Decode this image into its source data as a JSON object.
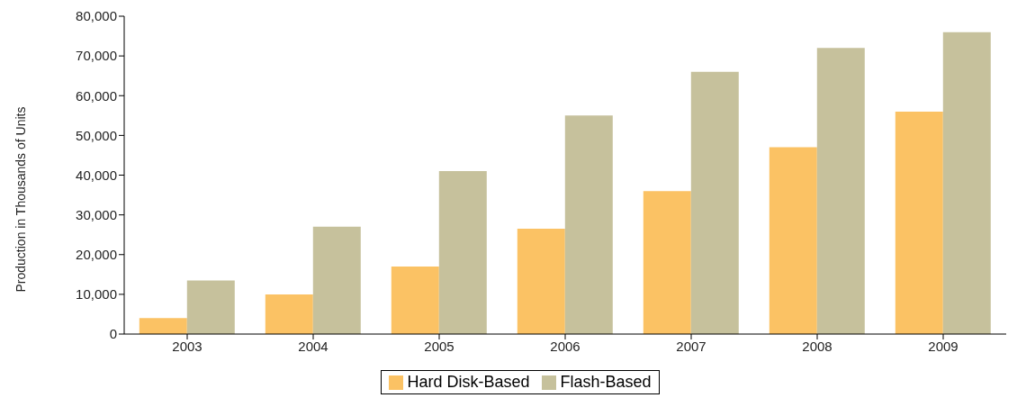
{
  "chart_data": {
    "type": "bar",
    "ylabel": "Production in Thousands of Units",
    "categories": [
      "2003",
      "2004",
      "2005",
      "2006",
      "2007",
      "2008",
      "2009"
    ],
    "series": [
      {
        "name": "Hard Disk-Based",
        "color": "#fbc264",
        "values": [
          4000,
          10000,
          17000,
          26500,
          36000,
          47000,
          56000
        ]
      },
      {
        "name": "Flash-Based",
        "color": "#c6c19c",
        "values": [
          13500,
          27000,
          41000,
          55000,
          66000,
          72000,
          76000
        ]
      }
    ],
    "ylim": [
      0,
      80000
    ],
    "yticks": [
      0,
      {
        "value": 10000,
        "label": "10,000"
      },
      {
        "value": 20000,
        "label": "20,000"
      },
      {
        "value": 30000,
        "label": "30,000"
      },
      {
        "value": 40000,
        "label": "40,000"
      },
      {
        "value": 50000,
        "label": "50,000"
      },
      {
        "value": 60000,
        "label": "60,000"
      },
      {
        "value": 70000,
        "label": "70,000"
      },
      {
        "value": 80000,
        "label": "80,000"
      }
    ],
    "grid": false,
    "legend": "bottom"
  }
}
